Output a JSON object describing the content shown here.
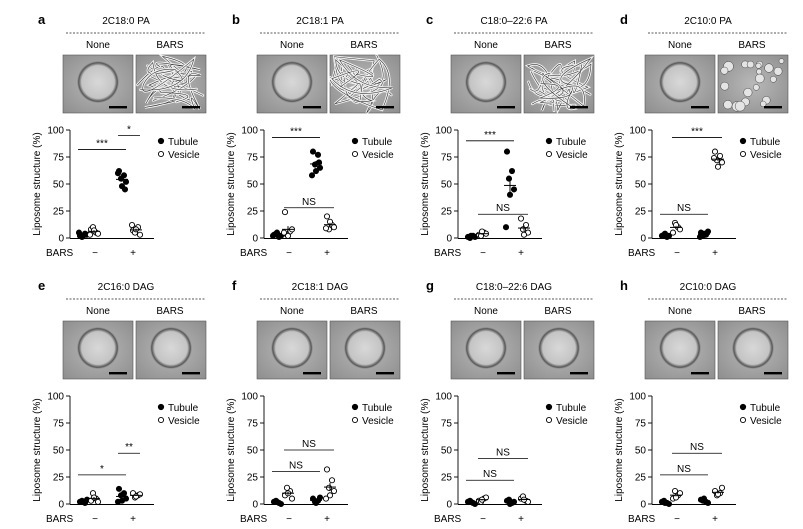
{
  "figure": {
    "labels": {
      "none": "None",
      "bars": "BARS",
      "tubule": "Tubule",
      "vesicle": "Vesicle",
      "ylabel": "Liposome structure (%)",
      "xlabel": "BARS",
      "minus": "−",
      "plus": "+"
    },
    "yticks": [
      "0",
      "25",
      "50",
      "75",
      "100"
    ]
  },
  "chart_data": [
    {
      "type": "scatter",
      "panel": "a",
      "title": "2C18:0 PA",
      "ylim": [
        0,
        100
      ],
      "ylabel": "Liposome structure (%)",
      "xlabel": "BARS",
      "categories": [
        "−",
        "+"
      ],
      "series": [
        {
          "name": "Tubule",
          "values": [
            [
              2,
              4,
              1,
              3,
              2,
              5,
              3
            ],
            [
              62,
              58,
              55,
              52,
              48,
              60,
              45
            ]
          ]
        },
        {
          "name": "Vesicle",
          "values": [
            [
              8,
              5,
              10,
              4,
              7,
              3
            ],
            [
              7,
              10,
              5,
              3,
              8,
              12
            ]
          ]
        }
      ],
      "significance": [
        {
          "label": "***",
          "pair": "tubule",
          "y": 82
        },
        {
          "label": "*",
          "pair": "tubule-vs-vesicle",
          "y": 95
        }
      ],
      "micrograph_left": "vesicle",
      "micrograph_right": "tubules"
    },
    {
      "type": "scatter",
      "panel": "b",
      "title": "2C18:1 PA",
      "ylim": [
        0,
        100
      ],
      "ylabel": "Liposome structure (%)",
      "xlabel": "BARS",
      "categories": [
        "−",
        "+"
      ],
      "series": [
        {
          "name": "Tubule",
          "values": [
            [
              3,
              1,
              4,
              2,
              5,
              2
            ],
            [
              80,
              77,
              68,
              65,
              62,
              58,
              70
            ]
          ]
        },
        {
          "name": "Vesicle",
          "values": [
            [
              24,
              6,
              3,
              8,
              2,
              5
            ],
            [
              20,
              12,
              8,
              10,
              15,
              9
            ]
          ]
        }
      ],
      "significance": [
        {
          "label": "***",
          "pair": "tubule",
          "y": 93
        },
        {
          "label": "NS",
          "pair": "vesicle",
          "y": 28
        }
      ],
      "micrograph_left": "vesicle",
      "micrograph_right": "tubules"
    },
    {
      "type": "scatter",
      "panel": "c",
      "title": "C18:0–22:6 PA",
      "ylim": [
        0,
        100
      ],
      "ylabel": "Liposome structure (%)",
      "xlabel": "BARS",
      "categories": [
        "−",
        "+"
      ],
      "series": [
        {
          "name": "Tubule",
          "values": [
            [
              1,
              2,
              0,
              1,
              2
            ],
            [
              80,
              62,
              55,
              45,
              40,
              10
            ]
          ]
        },
        {
          "name": "Vesicle",
          "values": [
            [
              3,
              5,
              2,
              4,
              6
            ],
            [
              18,
              12,
              8,
              5,
              3
            ]
          ]
        }
      ],
      "significance": [
        {
          "label": "***",
          "pair": "tubule",
          "y": 90
        },
        {
          "label": "NS",
          "pair": "vesicle",
          "y": 22
        }
      ],
      "micrograph_left": "vesicle",
      "micrograph_right": "tubules"
    },
    {
      "type": "scatter",
      "panel": "d",
      "title": "2C10:0 PA",
      "ylim": [
        0,
        100
      ],
      "ylabel": "Liposome structure (%)",
      "xlabel": "BARS",
      "categories": [
        "−",
        "+"
      ],
      "series": [
        {
          "name": "Tubule",
          "values": [
            [
              2,
              1,
              3,
              2,
              4
            ],
            [
              5,
              3,
              2,
              6,
              4,
              1
            ]
          ]
        },
        {
          "name": "Vesicle",
          "values": [
            [
              5,
              10,
              14,
              8,
              12
            ],
            [
              80,
              76,
              72,
              70,
              66,
              74
            ]
          ]
        }
      ],
      "significance": [
        {
          "label": "***",
          "pair": "vesicle",
          "y": 93
        },
        {
          "label": "NS",
          "pair": "tubule",
          "y": 22
        }
      ],
      "micrograph_left": "vesicle",
      "micrograph_right": "small-vesicles"
    },
    {
      "type": "scatter",
      "panel": "e",
      "title": "2C16:0 DAG",
      "ylim": [
        0,
        100
      ],
      "ylabel": "Liposome structure (%)",
      "xlabel": "BARS",
      "categories": [
        "−",
        "+"
      ],
      "series": [
        {
          "name": "Tubule",
          "values": [
            [
              2,
              1,
              3,
              4,
              2
            ],
            [
              14,
              10,
              8,
              5,
              3,
              2
            ]
          ]
        },
        {
          "name": "Vesicle",
          "values": [
            [
              3,
              5,
              10,
              2,
              6
            ],
            [
              10,
              8,
              6,
              9,
              7
            ]
          ]
        }
      ],
      "significance": [
        {
          "label": "*",
          "pair": "tubule",
          "y": 27
        },
        {
          "label": "**",
          "pair": "tubule-vs-vesicle",
          "y": 47
        }
      ],
      "micrograph_left": "vesicle",
      "micrograph_right": "vesicle"
    },
    {
      "type": "scatter",
      "panel": "f",
      "title": "2C18:1 DAG",
      "ylim": [
        0,
        100
      ],
      "ylabel": "Liposome structure (%)",
      "xlabel": "BARS",
      "categories": [
        "−",
        "+"
      ],
      "series": [
        {
          "name": "Tubule",
          "values": [
            [
              2,
              1,
              3,
              0,
              2
            ],
            [
              5,
              3,
              2,
              6,
              1
            ]
          ]
        },
        {
          "name": "Vesicle",
          "values": [
            [
              8,
              12,
              15,
              5,
              10
            ],
            [
              32,
              22,
              15,
              12,
              8,
              5
            ]
          ]
        }
      ],
      "significance": [
        {
          "label": "NS",
          "pair": "tubule",
          "y": 30
        },
        {
          "label": "NS",
          "pair": "vesicle",
          "y": 50
        }
      ],
      "micrograph_left": "vesicle",
      "micrograph_right": "vesicle"
    },
    {
      "type": "scatter",
      "panel": "g",
      "title": "C18:0–22:6 DAG",
      "ylim": [
        0,
        100
      ],
      "ylabel": "Liposome structure (%)",
      "xlabel": "BARS",
      "categories": [
        "−",
        "+"
      ],
      "series": [
        {
          "name": "Tubule",
          "values": [
            [
              2,
              1,
              3,
              0,
              2
            ],
            [
              3,
              1,
              4,
              2,
              0
            ]
          ]
        },
        {
          "name": "Vesicle",
          "values": [
            [
              3,
              5,
              2,
              6,
              4
            ],
            [
              5,
              3,
              7,
              2,
              4
            ]
          ]
        }
      ],
      "significance": [
        {
          "label": "NS",
          "pair": "tubule",
          "y": 22
        },
        {
          "label": "NS",
          "pair": "vesicle",
          "y": 42
        }
      ],
      "micrograph_left": "vesicle",
      "micrograph_right": "vesicle"
    },
    {
      "type": "scatter",
      "panel": "h",
      "title": "2C10:0 DAG",
      "ylim": [
        0,
        100
      ],
      "ylabel": "Liposome structure (%)",
      "xlabel": "BARS",
      "categories": [
        "−",
        "+"
      ],
      "series": [
        {
          "name": "Tubule",
          "values": [
            [
              2,
              1,
              3,
              0,
              1
            ],
            [
              4,
              2,
              3,
              1,
              5
            ]
          ]
        },
        {
          "name": "Vesicle",
          "values": [
            [
              5,
              8,
              12,
              10,
              6
            ],
            [
              12,
              10,
              8,
              15,
              9
            ]
          ]
        }
      ],
      "significance": [
        {
          "label": "NS",
          "pair": "tubule",
          "y": 27
        },
        {
          "label": "NS",
          "pair": "vesicle",
          "y": 47
        }
      ],
      "micrograph_left": "vesicle",
      "micrograph_right": "vesicle"
    }
  ]
}
